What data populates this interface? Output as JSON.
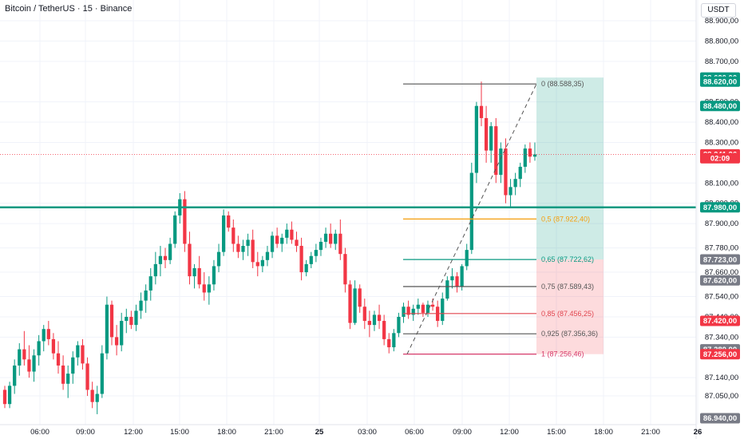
{
  "header": {
    "title": "Bitcoin / TetherUS · 15 · Binance",
    "currency": "USDT"
  },
  "colors": {
    "up": "#089981",
    "down": "#f23645",
    "grid": "#f0f3fa",
    "fib_orange": "#f59e0b",
    "fib_teal": "#089981",
    "fib_red": "#e0454f",
    "fib_gray": "#555555"
  },
  "chart_data": {
    "type": "candlestick",
    "title": "Bitcoin / TetherUS · 15 · Binance",
    "ylim": [
      86940,
      88900
    ],
    "y_ticks": [
      "88.900,00",
      "88.800,00",
      "88.700,00",
      "88.500,00",
      "88.400,00",
      "88.300,00",
      "88.100,00",
      "88.000,00",
      "87.900,00",
      "87.780,00",
      "87.660,00",
      "87.540,00",
      "87.440,00",
      "87.340,00",
      "87.140,00",
      "87.050,00"
    ],
    "x_ticks": [
      "06:00",
      "09:00",
      "12:00",
      "15:00",
      "18:00",
      "21:00",
      "25",
      "03:00",
      "06:00",
      "09:00",
      "12:00",
      "15:00",
      "18:00",
      "21:00",
      "26"
    ],
    "price_labels": [
      {
        "text": "88.620,00",
        "value": 88620,
        "color": "#089981"
      },
      {
        "text": "88.620,00",
        "value": 88600,
        "color": "#089981"
      },
      {
        "text": "88.480,00",
        "value": 88480,
        "color": "#089981"
      },
      {
        "text": "88.241,26",
        "value": 88241.26,
        "color": "#f23645"
      },
      {
        "text": "02:09",
        "value": 88222,
        "color": "#f23645"
      },
      {
        "text": "87.980,00",
        "value": 87980,
        "color": "#089981"
      },
      {
        "text": "87.723,00",
        "value": 87723,
        "color": "#787b86"
      },
      {
        "text": "87.620,00",
        "value": 87620,
        "color": "#787b86"
      },
      {
        "text": "87.420,00",
        "value": 87420,
        "color": "#f23645"
      },
      {
        "text": "87.280,00",
        "value": 87280,
        "color": "#787b86"
      },
      {
        "text": "87.256,00",
        "value": 87256,
        "color": "#f23645"
      },
      {
        "text": "86.940,00",
        "value": 86940,
        "color": "#787b86"
      }
    ],
    "horizontal_line": {
      "value": 87980,
      "color": "#089981"
    },
    "current_price": 88241.26,
    "fib_levels": [
      {
        "label": "0 (88.588,35)",
        "value": 88588.35,
        "color": "#555555"
      },
      {
        "label": "0,5 (87.922,40)",
        "value": 87922.4,
        "color": "#f59e0b"
      },
      {
        "label": "0,65 (87.722,62)",
        "value": 87722.62,
        "color": "#089981"
      },
      {
        "label": "0,75 (87.589,43)",
        "value": 87589.43,
        "color": "#555555"
      },
      {
        "label": "0,85 (87.456,25)",
        "value": 87456.25,
        "color": "#e0454f"
      },
      {
        "label": "0,925 (87.356,36)",
        "value": 87356.36,
        "color": "#555555"
      },
      {
        "label": "1 (87.256,46)",
        "value": 87256.46,
        "color": "#d63a6a"
      }
    ],
    "position": {
      "entry": 87723,
      "target": 88620,
      "stop": 87256
    },
    "candles": [
      [
        87080,
        87100,
        86990,
        87010
      ],
      [
        87010,
        87120,
        86990,
        87100
      ],
      [
        87100,
        87230,
        87060,
        87200
      ],
      [
        87200,
        87310,
        87150,
        87280
      ],
      [
        87280,
        87370,
        87200,
        87230
      ],
      [
        87230,
        87300,
        87140,
        87170
      ],
      [
        87170,
        87280,
        87120,
        87250
      ],
      [
        87250,
        87350,
        87200,
        87320
      ],
      [
        87320,
        87400,
        87270,
        87380
      ],
      [
        87380,
        87420,
        87300,
        87330
      ],
      [
        87330,
        87360,
        87230,
        87260
      ],
      [
        87260,
        87320,
        87160,
        87200
      ],
      [
        87200,
        87250,
        87080,
        87110
      ],
      [
        87110,
        87200,
        87040,
        87160
      ],
      [
        87160,
        87270,
        87110,
        87240
      ],
      [
        87240,
        87320,
        87200,
        87300
      ],
      [
        87300,
        87330,
        87180,
        87210
      ],
      [
        87210,
        87240,
        87050,
        87080
      ],
      [
        87080,
        87120,
        86990,
        87020
      ],
      [
        87020,
        87100,
        86960,
        87060
      ],
      [
        87060,
        87300,
        87040,
        87260
      ],
      [
        87260,
        87540,
        87230,
        87500
      ],
      [
        87500,
        87520,
        87300,
        87340
      ],
      [
        87340,
        87400,
        87250,
        87300
      ],
      [
        87300,
        87460,
        87270,
        87420
      ],
      [
        87420,
        87480,
        87360,
        87440
      ],
      [
        87440,
        87470,
        87380,
        87400
      ],
      [
        87400,
        87500,
        87370,
        87470
      ],
      [
        87470,
        87560,
        87430,
        87520
      ],
      [
        87520,
        87600,
        87460,
        87570
      ],
      [
        87570,
        87680,
        87520,
        87640
      ],
      [
        87640,
        87760,
        87600,
        87700
      ],
      [
        87700,
        87790,
        87640,
        87740
      ],
      [
        87740,
        87780,
        87680,
        87720
      ],
      [
        87720,
        87830,
        87700,
        87800
      ],
      [
        87800,
        87960,
        87780,
        87940
      ],
      [
        87940,
        88050,
        87900,
        88020
      ],
      [
        88020,
        88060,
        87760,
        87800
      ],
      [
        87800,
        87860,
        87600,
        87640
      ],
      [
        87640,
        87700,
        87580,
        87680
      ],
      [
        87680,
        87740,
        87580,
        87600
      ],
      [
        87600,
        87660,
        87520,
        87560
      ],
      [
        87560,
        87640,
        87500,
        87600
      ],
      [
        87600,
        87720,
        87570,
        87690
      ],
      [
        87690,
        87800,
        87660,
        87760
      ],
      [
        87760,
        87970,
        87740,
        87940
      ],
      [
        87940,
        87960,
        87860,
        87880
      ],
      [
        87880,
        87920,
        87760,
        87800
      ],
      [
        87800,
        87840,
        87730,
        87760
      ],
      [
        87760,
        87820,
        87720,
        87790
      ],
      [
        87790,
        87850,
        87740,
        87820
      ],
      [
        87820,
        87870,
        87680,
        87710
      ],
      [
        87710,
        87760,
        87640,
        87690
      ],
      [
        87690,
        87740,
        87660,
        87720
      ],
      [
        87720,
        87790,
        87690,
        87760
      ],
      [
        87760,
        87860,
        87730,
        87840
      ],
      [
        87840,
        87880,
        87780,
        87800
      ],
      [
        87800,
        87850,
        87760,
        87830
      ],
      [
        87830,
        87900,
        87800,
        87870
      ],
      [
        87870,
        87910,
        87800,
        87820
      ],
      [
        87820,
        87860,
        87760,
        87790
      ],
      [
        87790,
        87830,
        87620,
        87660
      ],
      [
        87660,
        87720,
        87640,
        87700
      ],
      [
        87700,
        87760,
        87680,
        87740
      ],
      [
        87740,
        87800,
        87710,
        87770
      ],
      [
        87770,
        87830,
        87740,
        87810
      ],
      [
        87810,
        87880,
        87780,
        87850
      ],
      [
        87850,
        87900,
        87780,
        87800
      ],
      [
        87800,
        87870,
        87770,
        87850
      ],
      [
        87850,
        87920,
        87720,
        87750
      ],
      [
        87750,
        87780,
        87560,
        87600
      ],
      [
        87600,
        87620,
        87380,
        87410
      ],
      [
        87410,
        87620,
        87400,
        87580
      ],
      [
        87580,
        87600,
        87460,
        87490
      ],
      [
        87490,
        87530,
        87380,
        87420
      ],
      [
        87420,
        87470,
        87340,
        87400
      ],
      [
        87400,
        87470,
        87370,
        87450
      ],
      [
        87450,
        87500,
        87380,
        87420
      ],
      [
        87420,
        87450,
        87300,
        87330
      ],
      [
        87330,
        87360,
        87260,
        87290
      ],
      [
        87290,
        87380,
        87270,
        87360
      ],
      [
        87360,
        87460,
        87340,
        87440
      ],
      [
        87440,
        87510,
        87410,
        87490
      ],
      [
        87490,
        87520,
        87430,
        87450
      ],
      [
        87450,
        87500,
        87420,
        87480
      ],
      [
        87480,
        87530,
        87450,
        87500
      ],
      [
        87500,
        87510,
        87440,
        87460
      ],
      [
        87460,
        87520,
        87440,
        87500
      ],
      [
        87500,
        87530,
        87470,
        87490
      ],
      [
        87490,
        87520,
        87390,
        87420
      ],
      [
        87420,
        87560,
        87400,
        87530
      ],
      [
        87530,
        87640,
        87520,
        87620
      ],
      [
        87620,
        87680,
        87580,
        87640
      ],
      [
        87640,
        87660,
        87560,
        87590
      ],
      [
        87590,
        87700,
        87570,
        87690
      ],
      [
        87690,
        87800,
        87670,
        87770
      ],
      [
        87770,
        88200,
        87750,
        88150
      ],
      [
        88150,
        88500,
        88100,
        88480
      ],
      [
        88480,
        88600,
        88380,
        88420
      ],
      [
        88420,
        88480,
        88200,
        88260
      ],
      [
        88260,
        88400,
        88200,
        88380
      ],
      [
        88380,
        88420,
        88100,
        88140
      ],
      [
        88140,
        88300,
        88100,
        88270
      ],
      [
        88270,
        88320,
        88000,
        88040
      ],
      [
        88040,
        88120,
        87980,
        88080
      ],
      [
        88080,
        88150,
        88040,
        88120
      ],
      [
        88120,
        88200,
        88080,
        88180
      ],
      [
        88180,
        88290,
        88150,
        88270
      ],
      [
        88270,
        88300,
        88200,
        88230
      ],
      [
        88230,
        88300,
        88210,
        88241
      ]
    ]
  }
}
